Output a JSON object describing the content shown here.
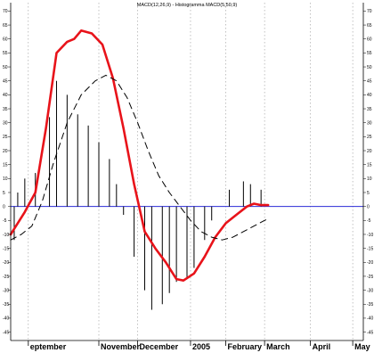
{
  "chart_data": {
    "type": "line",
    "title": "MACD(12,26,9) - Histogramma MACD(5,50,9)",
    "xlabel": "",
    "ylabel": "",
    "ylim": [
      -48,
      73
    ],
    "xlim": [
      0,
      100
    ],
    "grid": true,
    "x_ticks": [
      {
        "x": 5,
        "label": "eptember"
      },
      {
        "x": 25,
        "label": "November"
      },
      {
        "x": 36,
        "label": "December"
      },
      {
        "x": 51,
        "label": "2005"
      },
      {
        "x": 61,
        "label": "February"
      },
      {
        "x": 72,
        "label": "March"
      },
      {
        "x": 85,
        "label": "April"
      },
      {
        "x": 97,
        "label": "May"
      }
    ],
    "y_ticks": [
      -45,
      -40,
      -35,
      -30,
      -25,
      -20,
      -15,
      -10,
      -5,
      0,
      5,
      10,
      15,
      20,
      25,
      30,
      35,
      40,
      45,
      50,
      55,
      60,
      65,
      70
    ],
    "series": [
      {
        "kind": "line",
        "color": "#e8131a",
        "dash": "",
        "points": [
          [
            0,
            -10
          ],
          [
            4,
            -2
          ],
          [
            7,
            5
          ],
          [
            10,
            28
          ],
          [
            13,
            55
          ],
          [
            16,
            59
          ],
          [
            18,
            60
          ],
          [
            20,
            63
          ],
          [
            23,
            62
          ],
          [
            26,
            58
          ],
          [
            29,
            46
          ],
          [
            32,
            28
          ],
          [
            35,
            8
          ],
          [
            38,
            -9
          ],
          [
            41,
            -15
          ],
          [
            44,
            -20
          ],
          [
            47,
            -26
          ],
          [
            49,
            -26.5
          ],
          [
            52,
            -24
          ],
          [
            55,
            -18
          ],
          [
            58,
            -11
          ],
          [
            61,
            -6
          ],
          [
            64,
            -3
          ],
          [
            67,
            0
          ],
          [
            69,
            1
          ],
          [
            71,
            0.5
          ],
          [
            73,
            0.5
          ]
        ]
      },
      {
        "kind": "line",
        "color": "#000000",
        "dash": "7,5",
        "points": [
          [
            0,
            -12
          ],
          [
            3,
            -10
          ],
          [
            6,
            -7
          ],
          [
            9,
            2
          ],
          [
            12,
            15
          ],
          [
            16,
            30
          ],
          [
            20,
            40
          ],
          [
            24,
            45
          ],
          [
            27,
            47
          ],
          [
            30,
            45
          ],
          [
            33,
            39
          ],
          [
            36,
            30
          ],
          [
            39,
            20
          ],
          [
            42,
            11
          ],
          [
            45,
            5
          ],
          [
            48,
            0
          ],
          [
            51,
            -5
          ],
          [
            54,
            -9
          ],
          [
            57,
            -11
          ],
          [
            60,
            -12
          ],
          [
            63,
            -11
          ],
          [
            66,
            -9
          ],
          [
            69,
            -7
          ],
          [
            72,
            -5
          ],
          [
            73,
            -4.5
          ]
        ]
      },
      {
        "kind": "bar",
        "color": "#000000",
        "points": [
          [
            1,
            -12
          ],
          [
            2,
            5
          ],
          [
            4,
            10
          ],
          [
            7,
            12
          ],
          [
            11,
            32
          ],
          [
            13,
            45
          ],
          [
            16,
            40
          ],
          [
            19,
            33
          ],
          [
            22,
            29
          ],
          [
            25,
            23
          ],
          [
            28,
            17
          ],
          [
            30,
            8
          ],
          [
            32,
            -3
          ],
          [
            35,
            -18
          ],
          [
            38,
            -30
          ],
          [
            40,
            -37
          ],
          [
            43,
            -35
          ],
          [
            45,
            -31
          ],
          [
            47,
            -27
          ],
          [
            50,
            -26
          ],
          [
            52,
            -22
          ],
          [
            55,
            -12
          ],
          [
            57,
            -5
          ],
          [
            62,
            6
          ],
          [
            66,
            9
          ],
          [
            68,
            8
          ],
          [
            71,
            6
          ]
        ]
      }
    ]
  }
}
